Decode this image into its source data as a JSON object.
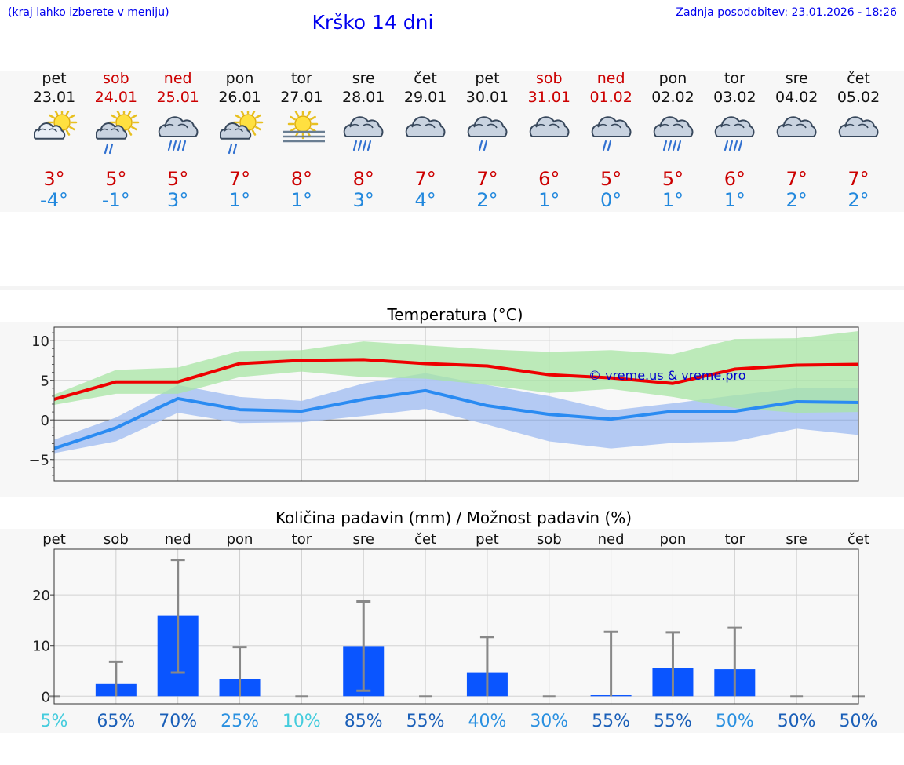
{
  "header": {
    "location_hint": "(kraj lahko izberete v meniju)",
    "title": "Krško 14 dni",
    "last_update": "Zadnja posodobitev: 23.01.2026 - 18:26"
  },
  "days": [
    {
      "weekday": "pet",
      "date": "23.01",
      "weekend": false,
      "icon": "partly-sunny-cloud-icon",
      "tmax": "3°",
      "tmin": "-4°"
    },
    {
      "weekday": "sob",
      "date": "24.01",
      "weekend": true,
      "icon": "sun-cloud-light-rain-icon",
      "tmax": "5°",
      "tmin": "-1°"
    },
    {
      "weekday": "ned",
      "date": "25.01",
      "weekend": true,
      "icon": "cloud-rain-icon",
      "tmax": "5°",
      "tmin": "3°"
    },
    {
      "weekday": "pon",
      "date": "26.01",
      "weekend": false,
      "icon": "sun-cloud-light-rain-icon",
      "tmax": "7°",
      "tmin": "1°"
    },
    {
      "weekday": "tor",
      "date": "27.01",
      "weekend": false,
      "icon": "sun-fog-icon",
      "tmax": "8°",
      "tmin": "1°"
    },
    {
      "weekday": "sre",
      "date": "28.01",
      "weekend": false,
      "icon": "cloud-rain-icon",
      "tmax": "8°",
      "tmin": "3°"
    },
    {
      "weekday": "čet",
      "date": "29.01",
      "weekend": false,
      "icon": "cloudy-icon",
      "tmax": "7°",
      "tmin": "4°"
    },
    {
      "weekday": "pet",
      "date": "30.01",
      "weekend": false,
      "icon": "cloud-light-rain-icon",
      "tmax": "7°",
      "tmin": "2°"
    },
    {
      "weekday": "sob",
      "date": "31.01",
      "weekend": true,
      "icon": "cloudy-icon",
      "tmax": "6°",
      "tmin": "1°"
    },
    {
      "weekday": "ned",
      "date": "01.02",
      "weekend": true,
      "icon": "cloud-light-rain-icon",
      "tmax": "5°",
      "tmin": "0°"
    },
    {
      "weekday": "pon",
      "date": "02.02",
      "weekend": false,
      "icon": "cloud-rain-icon",
      "tmax": "5°",
      "tmin": "1°"
    },
    {
      "weekday": "tor",
      "date": "03.02",
      "weekend": false,
      "icon": "cloud-rain-icon",
      "tmax": "6°",
      "tmin": "1°"
    },
    {
      "weekday": "sre",
      "date": "04.02",
      "weekend": false,
      "icon": "cloudy-icon",
      "tmax": "7°",
      "tmin": "2°"
    },
    {
      "weekday": "čet",
      "date": "05.02",
      "weekend": false,
      "icon": "cloudy-icon",
      "tmax": "7°",
      "tmin": "2°"
    }
  ],
  "colors": {
    "max_line": "#ee0000",
    "min_line": "#2a8bf2",
    "max_band": "#a8e6a4",
    "min_band": "#a8c2f2",
    "overlap_band": "#7fc8a8",
    "bar": "#0a55ff",
    "error_bar": "#888888",
    "watermark": "#0000cc",
    "weekend_text": "#cc0000",
    "weekday_text": "#111111"
  },
  "chart_data": [
    {
      "type": "line",
      "title": "Temperatura (°C)",
      "ylabel": "°C",
      "ylim": [
        -7.7,
        11.7
      ],
      "yticks": [
        -5,
        0,
        5,
        10
      ],
      "yticklabels": [
        "−5",
        "0",
        "5",
        "10"
      ],
      "categories": [
        "pet",
        "sob",
        "ned",
        "pon",
        "tor",
        "sre",
        "čet",
        "pet",
        "sob",
        "ned",
        "pon",
        "tor",
        "sre",
        "čet"
      ],
      "watermark": "© vreme.us & vreme.pro",
      "series": [
        {
          "name": "max",
          "values": [
            2.6,
            4.8,
            4.8,
            7.1,
            7.5,
            7.6,
            7.1,
            6.8,
            5.7,
            5.3,
            4.6,
            6.4,
            6.9,
            7.0
          ]
        },
        {
          "name": "min",
          "values": [
            -3.6,
            -1.0,
            2.7,
            1.3,
            1.1,
            2.6,
            3.7,
            1.8,
            0.7,
            0.1,
            1.1,
            1.1,
            2.3,
            2.2
          ]
        }
      ],
      "bands": [
        {
          "name": "max-range",
          "low": [
            1.9,
            3.3,
            3.3,
            5.4,
            6.1,
            5.4,
            5.2,
            4.4,
            3.4,
            3.9,
            2.9,
            1.5,
            0.9,
            1.0
          ],
          "high": [
            3.2,
            6.3,
            6.6,
            8.7,
            8.8,
            9.9,
            9.4,
            8.9,
            8.6,
            8.8,
            8.3,
            10.2,
            10.3,
            11.2
          ]
        },
        {
          "name": "min-range",
          "low": [
            -4.2,
            -2.7,
            0.9,
            -0.4,
            -0.3,
            0.5,
            1.4,
            -0.6,
            -2.7,
            -3.6,
            -2.9,
            -2.7,
            -1.1,
            -1.9
          ],
          "high": [
            -2.5,
            0.3,
            4.4,
            2.9,
            2.4,
            4.6,
            5.9,
            4.4,
            3.0,
            1.2,
            2.1,
            3.1,
            4.0,
            4.0
          ]
        }
      ]
    },
    {
      "type": "bar",
      "title": "Količina padavin (mm) / Možnost padavin (%)",
      "ylabel": "mm",
      "ylim": [
        -1.5,
        29
      ],
      "yticks": [
        0,
        10,
        20
      ],
      "categories": [
        "pet",
        "sob",
        "ned",
        "pon",
        "tor",
        "sre",
        "čet",
        "pet",
        "sob",
        "ned",
        "pon",
        "tor",
        "sre",
        "čet"
      ],
      "values": [
        0,
        2.4,
        15.9,
        3.3,
        0,
        9.9,
        0,
        4.6,
        0,
        0.2,
        5.6,
        5.3,
        0,
        0
      ],
      "error_low": [
        0,
        0,
        4.7,
        0,
        0,
        1.1,
        0,
        0,
        0,
        0,
        0,
        0,
        0,
        0
      ],
      "error_high": [
        0,
        6.8,
        26.9,
        9.7,
        0,
        18.7,
        0,
        11.7,
        0,
        12.7,
        12.6,
        13.5,
        0,
        0
      ],
      "probabilities": [
        "5%",
        "65%",
        "70%",
        "25%",
        "10%",
        "85%",
        "55%",
        "40%",
        "30%",
        "55%",
        "55%",
        "50%",
        "50%",
        "50%"
      ],
      "probability_colors": [
        "#44ccdd",
        "#1a5fb8",
        "#1a5fb8",
        "#2a90e0",
        "#44ccdd",
        "#1a5fb8",
        "#1a5fb8",
        "#2a90e0",
        "#2a90e0",
        "#1a5fb8",
        "#1a5fb8",
        "#2a90e0",
        "#1a5fb8",
        "#1a5fb8"
      ]
    }
  ]
}
